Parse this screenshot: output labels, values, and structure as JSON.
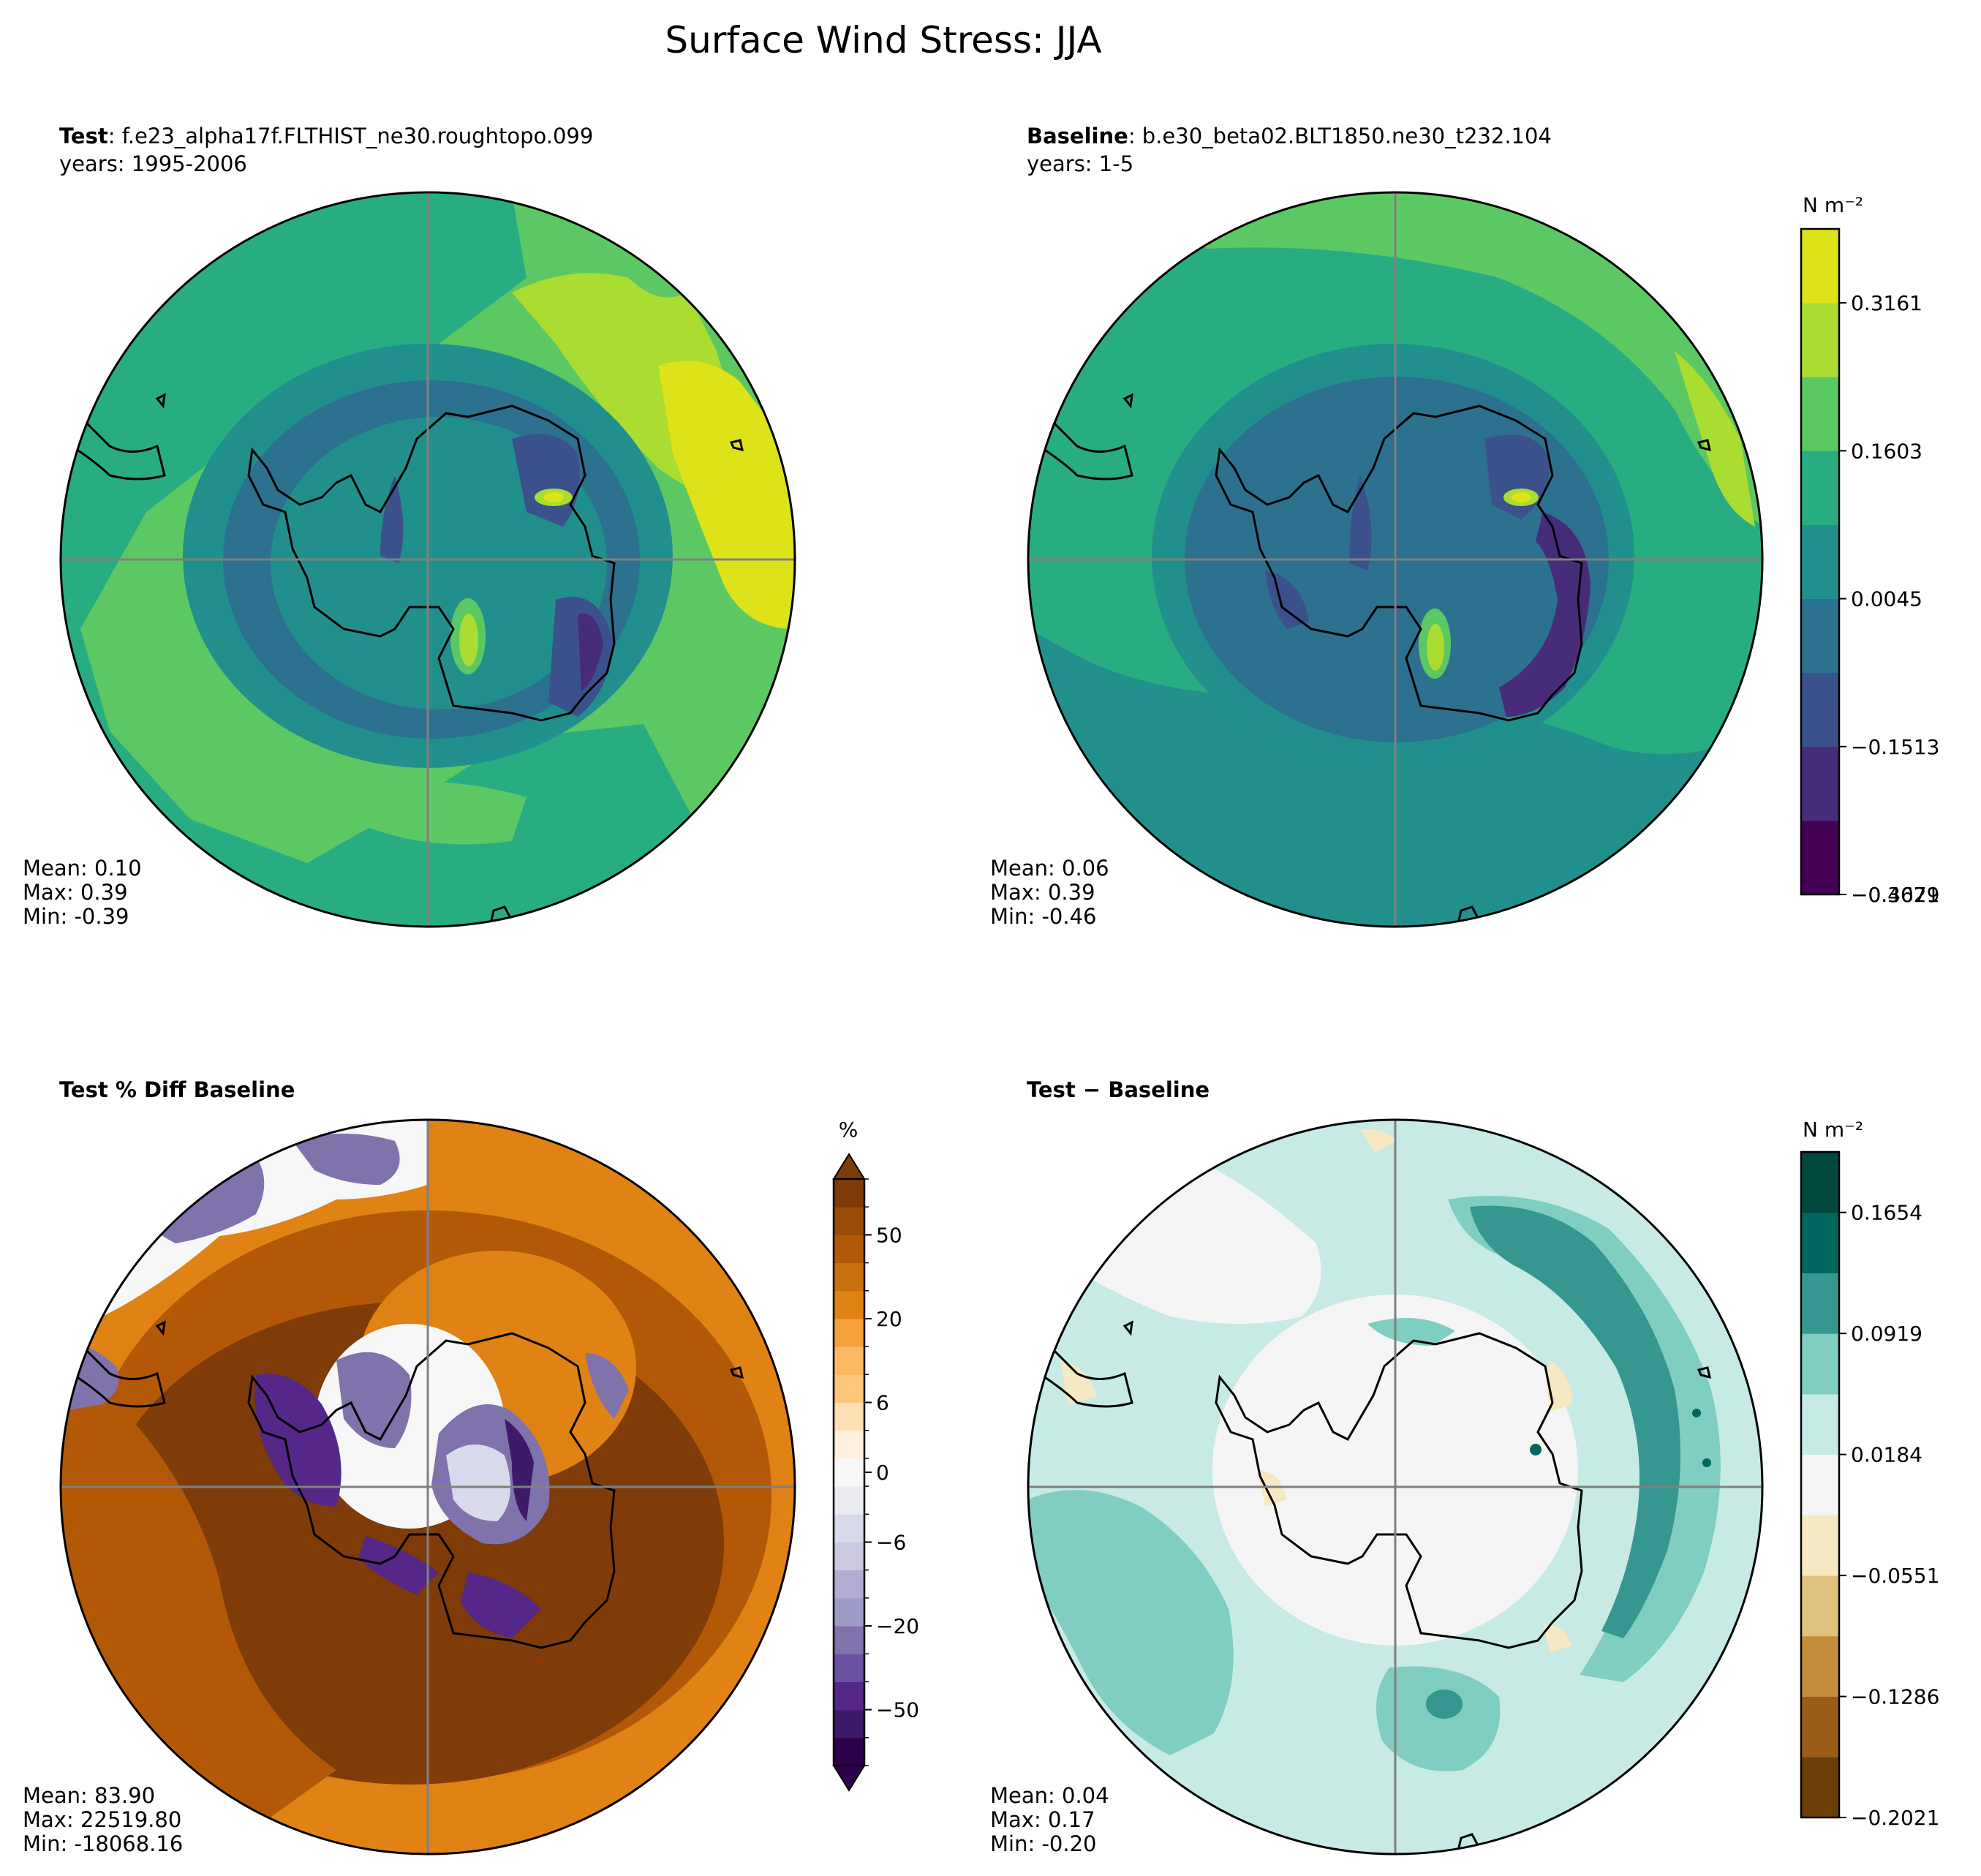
{
  "figure": {
    "title": "Surface Wind Stress: JJA"
  },
  "panels": [
    {
      "id": "test",
      "label": "Test",
      "case": ": f.e23_alpha17f.FLTHIST_ne30.roughtopo.099",
      "years": "years: 1995-2006",
      "stats": {
        "mean": "Mean:  0.10",
        "max": "Max:  0.39",
        "min": "Min: -0.39"
      }
    },
    {
      "id": "baseline",
      "label": "Baseline",
      "case": ": b.e30_beta02.BLT1850.ne30_t232.104",
      "years": "years: 1-5",
      "stats": {
        "mean": "Mean:  0.06",
        "max": "Max:  0.39",
        "min": "Min: -0.46"
      }
    },
    {
      "id": "pctdiff",
      "label": "Test % Diff Baseline",
      "stats": {
        "mean": "Mean: 83.90",
        "max": "Max: 22519.80",
        "min": "Min: -18068.16"
      }
    },
    {
      "id": "diff",
      "label": "Test − Baseline",
      "stats": {
        "mean": "Mean:  0.04",
        "max": "Max:  0.17",
        "min": "Min: -0.20"
      }
    }
  ],
  "colorbars": {
    "field": {
      "unit": "N m⁻²",
      "colors": [
        "#440154",
        "#472c7a",
        "#3b518b",
        "#2c718e",
        "#21908d",
        "#27ad81",
        "#5cc863",
        "#aadc32",
        "#dde318"
      ],
      "ticks": [
        "0.3161",
        "0.1603",
        "0.0045",
        "−0.1513",
        "−0.3071",
        "−0.4629"
      ]
    },
    "pct": {
      "unit": "%",
      "colors": [
        "#2d004b",
        "#3f1a6b",
        "#542788",
        "#6a51a3",
        "#8073ac",
        "#9e9ac8",
        "#b2abd2",
        "#cbc9e2",
        "#d8daeb",
        "#ebebf2",
        "#f7f7f7",
        "#fdf0dc",
        "#fee0b6",
        "#fdc77a",
        "#fdb863",
        "#f6a03b",
        "#e08214",
        "#c9700f",
        "#b35806",
        "#9a4b07",
        "#7f3b08"
      ],
      "ticks": [
        "50",
        "20",
        "6",
        "0",
        "−6",
        "−20",
        "−50"
      ]
    },
    "diff": {
      "unit": "N m⁻²",
      "colors": [
        "#6b3f09",
        "#9a5c17",
        "#c48d3c",
        "#dfc27d",
        "#f6e8c3",
        "#f5f5f5",
        "#c7eae5",
        "#80cdc1",
        "#35978f",
        "#01665e",
        "#00473d"
      ],
      "ticks": [
        "0.1654",
        "0.0919",
        "0.0184",
        "−0.0551",
        "−0.1286",
        "−0.2021"
      ]
    }
  },
  "map_colors": {
    "coast": "#000000",
    "grid": "#808080"
  }
}
